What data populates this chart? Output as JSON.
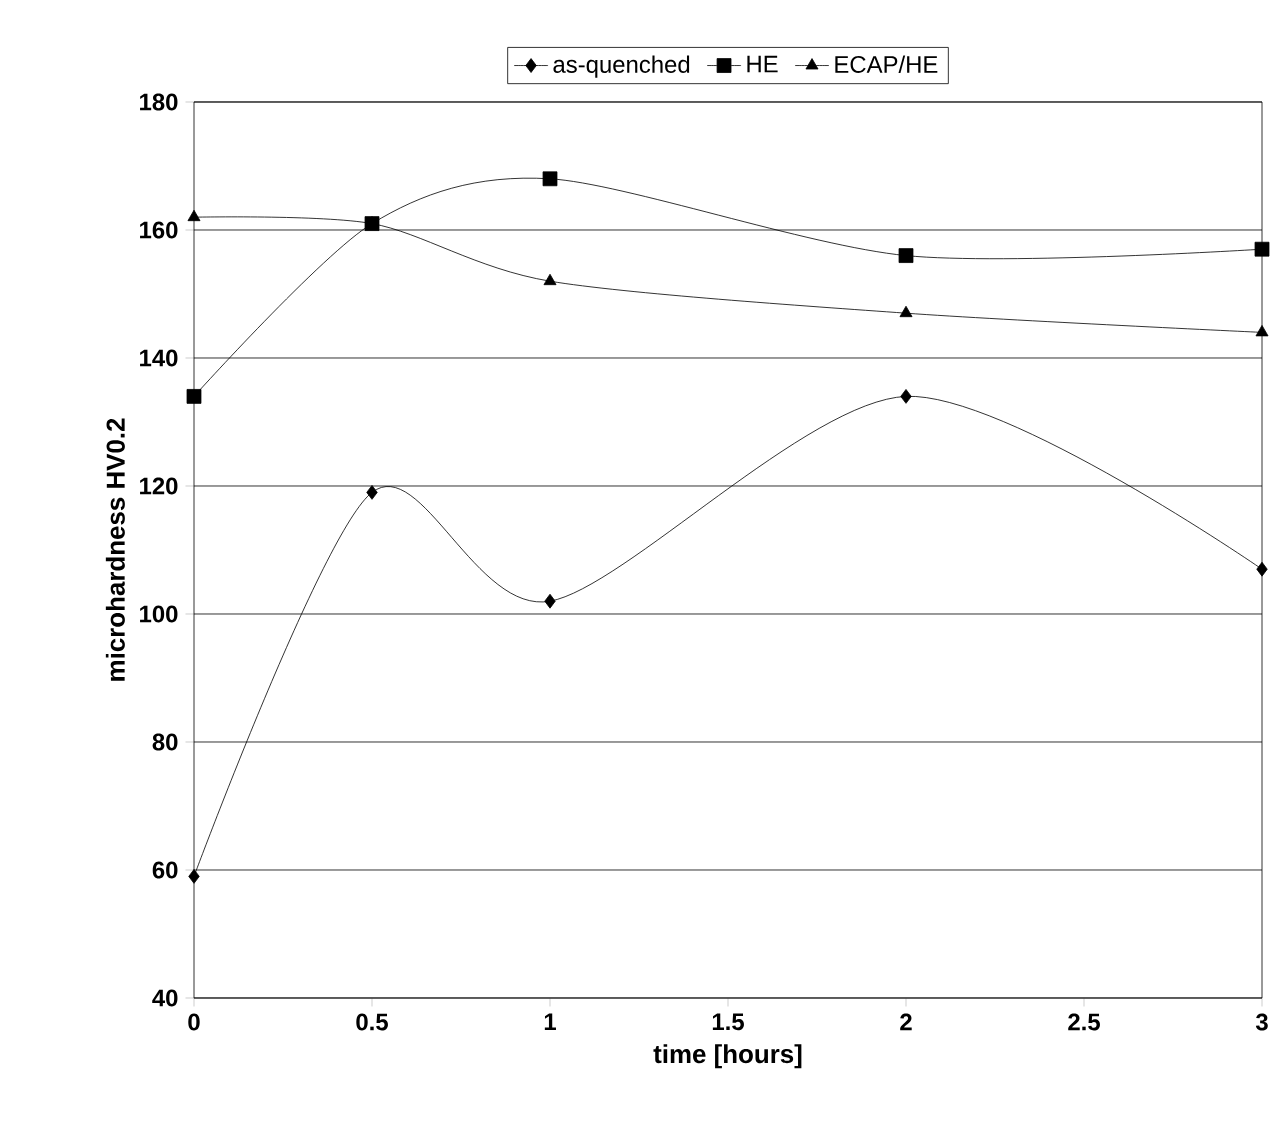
{
  "chart_data": {
    "type": "line",
    "xlabel": "time [hours]",
    "ylabel": "microhardness HV0.2",
    "x": [
      0,
      0.5,
      1,
      2,
      3
    ],
    "series": [
      {
        "name": "as-quenched",
        "color": "#000000",
        "marker": "diamond",
        "values": [
          59,
          119,
          102,
          134,
          107
        ]
      },
      {
        "name": "HE",
        "color": "#000000",
        "marker": "square",
        "values": [
          134,
          161,
          168,
          156,
          157
        ]
      },
      {
        "name": "ECAP/HE",
        "color": "#000000",
        "marker": "triangle",
        "values": [
          162,
          161,
          152,
          147,
          144
        ]
      }
    ],
    "xlim": [
      0,
      3
    ],
    "ylim": [
      40,
      180
    ],
    "xticks": [
      0,
      0.5,
      1,
      1.5,
      2,
      2.5,
      3
    ],
    "yticks": [
      40,
      60,
      80,
      100,
      120,
      140,
      160,
      180
    ],
    "grid": "y",
    "legend": "top",
    "line_style": "solid"
  }
}
